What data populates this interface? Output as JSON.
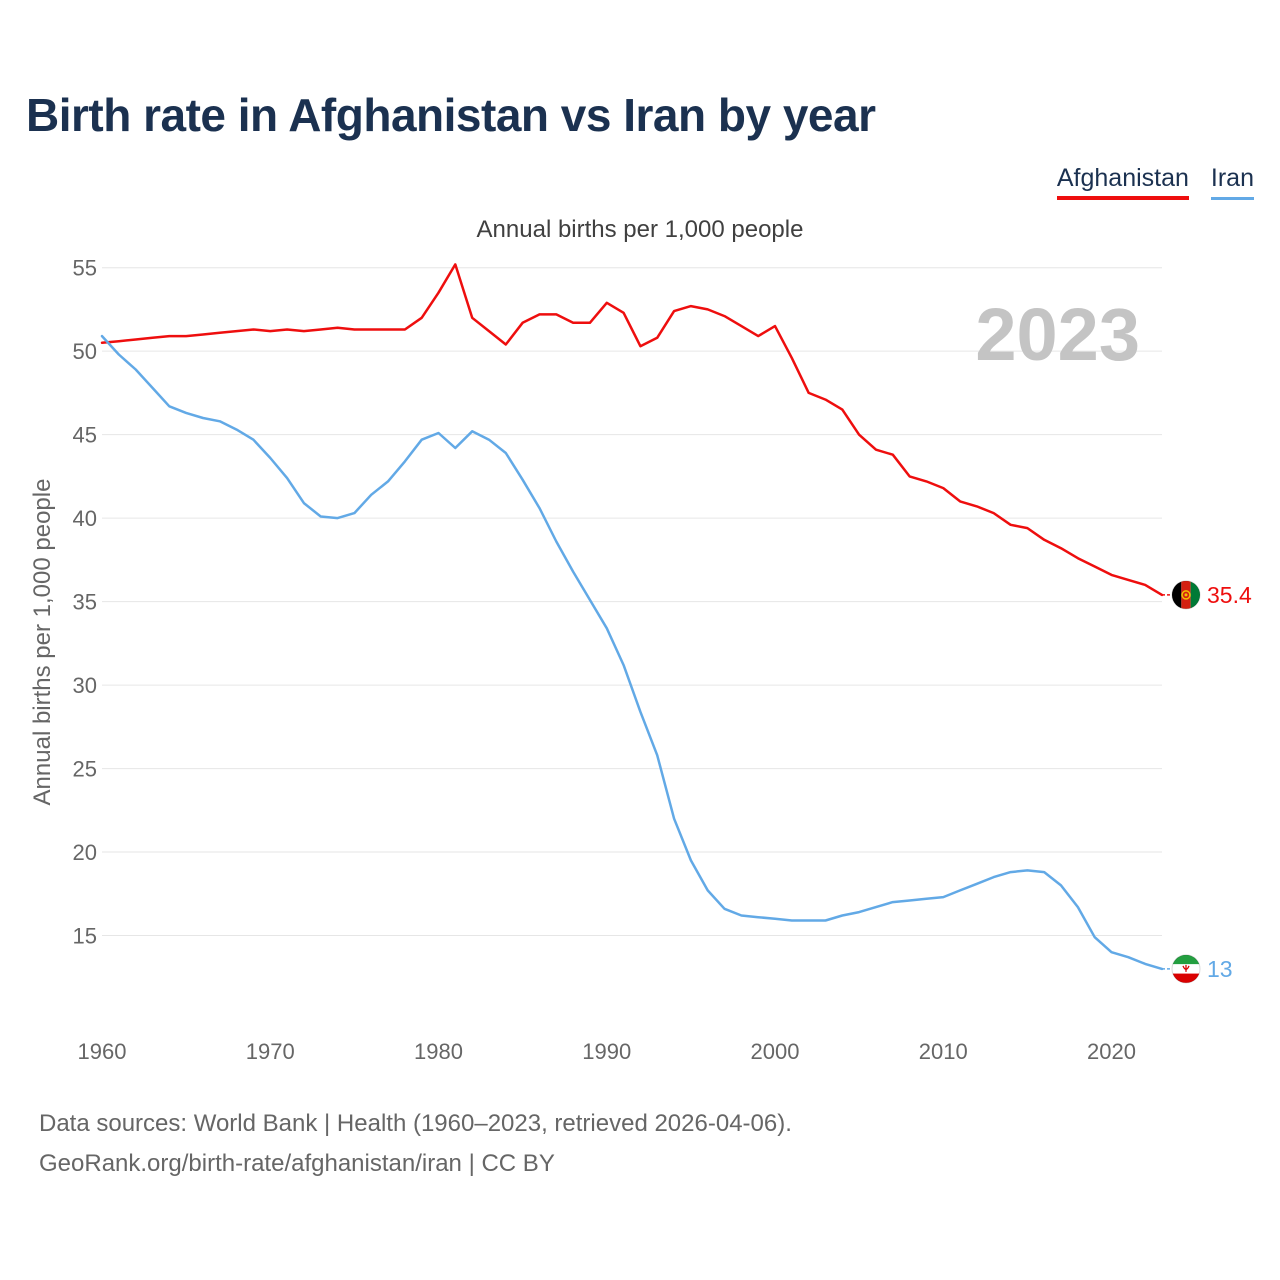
{
  "title": "Birth rate in Afghanistan vs Iran by year",
  "subtitle": "Annual births per 1,000 people",
  "legend": [
    "Afghanistan",
    "Iran"
  ],
  "footer": {
    "line1": "Data sources: World Bank | Health (1960–2023, retrieved 2026-04-06).",
    "line2": "GeoRank.org/birth-rate/afghanistan/iran | CC BY"
  },
  "chart_data": {
    "type": "line",
    "title": "Birth rate in Afghanistan vs Iran by year",
    "subtitle": "Annual births per 1,000 people",
    "xlabel": "",
    "ylabel": "Annual births per 1,000 people",
    "current_year_label": "2023",
    "xlim": [
      1960,
      2023
    ],
    "ylim": [
      10,
      56
    ],
    "x_ticks": [
      1960,
      1970,
      1980,
      1990,
      2000,
      2010,
      2020
    ],
    "y_ticks": [
      15,
      20,
      25,
      30,
      35,
      40,
      45,
      50,
      55
    ],
    "grid": true,
    "legend_position": "top-right",
    "x": [
      1960,
      1961,
      1962,
      1963,
      1964,
      1965,
      1966,
      1967,
      1968,
      1969,
      1970,
      1971,
      1972,
      1973,
      1974,
      1975,
      1976,
      1977,
      1978,
      1979,
      1980,
      1981,
      1982,
      1983,
      1984,
      1985,
      1986,
      1987,
      1988,
      1989,
      1990,
      1991,
      1992,
      1993,
      1994,
      1995,
      1996,
      1997,
      1998,
      1999,
      2000,
      2001,
      2002,
      2003,
      2004,
      2005,
      2006,
      2007,
      2008,
      2009,
      2010,
      2011,
      2012,
      2013,
      2014,
      2015,
      2016,
      2017,
      2018,
      2019,
      2020,
      2021,
      2022,
      2023
    ],
    "series": [
      {
        "name": "Afghanistan",
        "color": "#ee0e0e",
        "end_label": "35.4",
        "flag": "afghanistan-flag",
        "values": [
          50.5,
          50.6,
          50.7,
          50.8,
          50.9,
          50.9,
          51.0,
          51.1,
          51.2,
          51.3,
          51.2,
          51.3,
          51.2,
          51.3,
          51.4,
          51.3,
          51.3,
          51.3,
          51.3,
          52.0,
          53.5,
          55.2,
          52.0,
          51.2,
          50.4,
          51.7,
          52.2,
          52.2,
          51.7,
          51.7,
          52.9,
          52.3,
          50.3,
          50.8,
          52.4,
          52.7,
          52.5,
          52.1,
          51.5,
          50.9,
          51.5,
          49.6,
          47.5,
          47.1,
          46.5,
          45.0,
          44.1,
          43.8,
          42.5,
          42.2,
          41.8,
          41.0,
          40.7,
          40.3,
          39.6,
          39.4,
          38.7,
          38.2,
          37.6,
          37.1,
          36.6,
          36.3,
          36.0,
          35.4
        ]
      },
      {
        "name": "Iran",
        "color": "#62a9e6",
        "end_label": "13",
        "flag": "iran-flag",
        "values": [
          50.9,
          49.8,
          48.9,
          47.8,
          46.7,
          46.3,
          46.0,
          45.8,
          45.3,
          44.7,
          43.6,
          42.4,
          40.9,
          40.1,
          40.0,
          40.3,
          41.4,
          42.2,
          43.4,
          44.7,
          45.1,
          44.2,
          45.2,
          44.7,
          43.9,
          42.3,
          40.6,
          38.6,
          36.8,
          35.1,
          33.4,
          31.2,
          28.4,
          25.8,
          22.0,
          19.5,
          17.7,
          16.6,
          16.2,
          16.1,
          16.0,
          15.9,
          15.9,
          15.9,
          16.2,
          16.4,
          16.7,
          17.0,
          17.1,
          17.2,
          17.3,
          17.7,
          18.1,
          18.5,
          18.8,
          18.9,
          18.8,
          18.0,
          16.7,
          14.9,
          14.0,
          13.7,
          13.3,
          13.0
        ]
      }
    ]
  }
}
